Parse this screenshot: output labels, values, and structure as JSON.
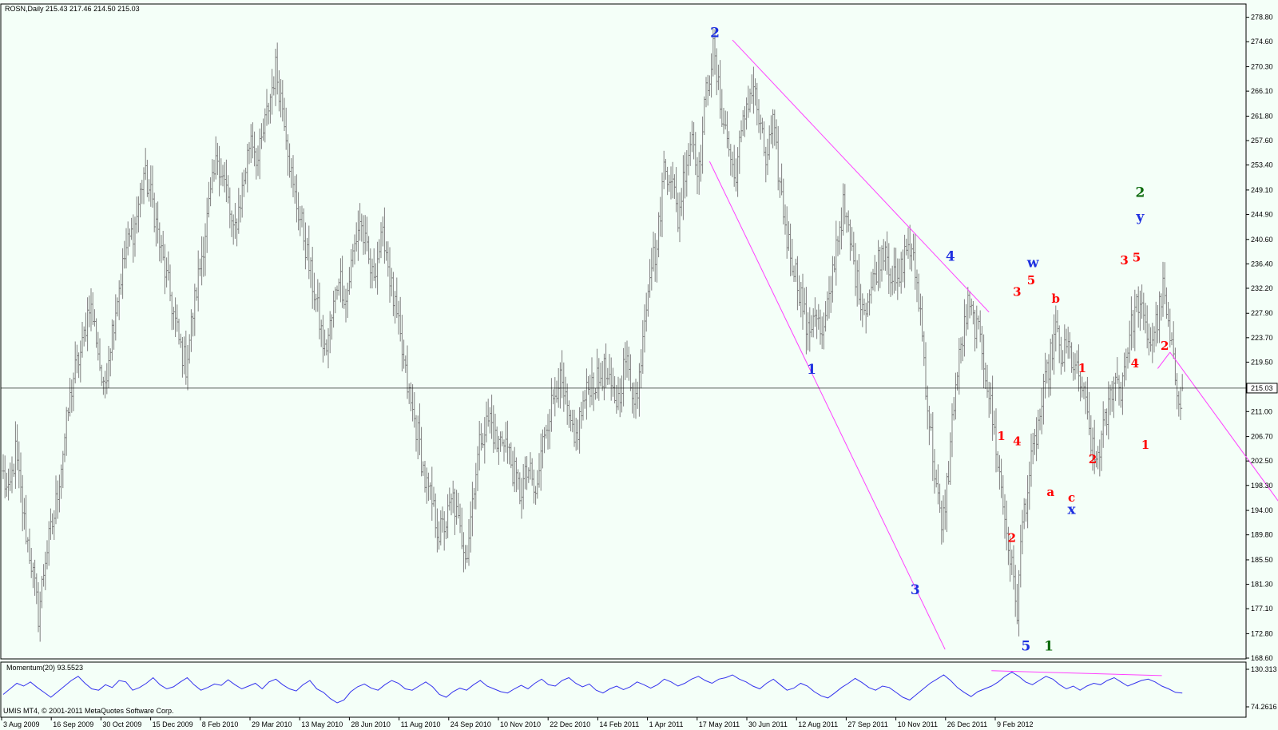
{
  "header": {
    "symbol_line": "ROSN,Daily  215.43 217.46 214.50 215.03",
    "indicator_line": "Momentum(20) 93.5523",
    "copyright": "UMIS MT4, © 2001-2011 MetaQuotes Software Corp."
  },
  "colors": {
    "background": "#f4fff8",
    "bars": "#808080",
    "trendline": "#ff40ff",
    "momentum": "#3333ee",
    "wave_red": "#ff0000",
    "wave_blue": "#1e30e0",
    "wave_green": "#0b6a0b",
    "grid": "#000000"
  },
  "chart_data": [
    {
      "type": "bar",
      "title": "ROSN,Daily",
      "ohlc_last": {
        "open": 215.43,
        "high": 217.46,
        "low": 214.5,
        "close": 215.03
      },
      "current_price": 215.03,
      "current_price_label": "215.03",
      "ylim": [
        168.6,
        280.95
      ],
      "y_ticks": [
        "278.80",
        "274.60",
        "270.30",
        "266.10",
        "261.80",
        "257.60",
        "253.40",
        "249.10",
        "244.90",
        "240.60",
        "236.40",
        "232.20",
        "227.90",
        "223.70",
        "219.50",
        "215.03",
        "211.00",
        "206.70",
        "202.50",
        "198.30",
        "194.00",
        "189.80",
        "185.50",
        "181.30",
        "177.10",
        "172.80",
        "168.60"
      ],
      "x_ticks": [
        "3 Aug 2009",
        "16 Sep 2009",
        "30 Oct 2009",
        "15 Dec 2009",
        "8 Feb 2010",
        "29 Mar 2010",
        "13 May 2010",
        "28 Jun 2010",
        "11 Aug 2010",
        "24 Sep 2010",
        "10 Nov 2010",
        "22 Dec 2010",
        "14 Feb 2011",
        "1 Apr 2011",
        "17 May 2011",
        "30 Jun 2011",
        "12 Aug 2011",
        "27 Sep 2011",
        "10 Nov 2011",
        "26 Dec 2011",
        "9 Feb 2012"
      ],
      "price_path": [
        [
          0,
          200
        ],
        [
          3,
          196
        ],
        [
          7,
          204
        ],
        [
          12,
          192
        ],
        [
          16,
          185
        ],
        [
          20,
          176
        ],
        [
          24,
          186
        ],
        [
          29,
          193
        ],
        [
          33,
          202
        ],
        [
          37,
          211
        ],
        [
          40,
          217
        ],
        [
          45,
          222
        ],
        [
          49,
          230
        ],
        [
          53,
          224
        ],
        [
          57,
          214
        ],
        [
          60,
          221
        ],
        [
          65,
          231
        ],
        [
          70,
          239
        ],
        [
          75,
          243
        ],
        [
          80,
          252
        ],
        [
          85,
          247
        ],
        [
          90,
          238
        ],
        [
          95,
          231
        ],
        [
          100,
          223
        ],
        [
          104,
          219
        ],
        [
          108,
          228
        ],
        [
          113,
          238
        ],
        [
          117,
          246
        ],
        [
          122,
          255
        ],
        [
          127,
          249
        ],
        [
          131,
          241
        ],
        [
          136,
          249
        ],
        [
          141,
          259
        ],
        [
          145,
          254
        ],
        [
          150,
          262
        ],
        [
          155,
          270
        ],
        [
          160,
          262
        ],
        [
          165,
          249
        ],
        [
          170,
          243
        ],
        [
          174,
          236
        ],
        [
          178,
          230
        ],
        [
          183,
          221
        ],
        [
          187,
          227
        ],
        [
          191,
          235
        ],
        [
          195,
          230
        ],
        [
          199,
          238
        ],
        [
          203,
          244
        ],
        [
          207,
          238
        ],
        [
          210,
          234
        ],
        [
          214,
          239
        ],
        [
          217,
          241
        ],
        [
          221,
          232
        ],
        [
          225,
          225
        ],
        [
          229,
          217
        ],
        [
          232,
          212
        ],
        [
          236,
          207
        ],
        [
          240,
          199
        ],
        [
          244,
          195
        ],
        [
          248,
          190
        ],
        [
          252,
          192
        ],
        [
          256,
          196
        ],
        [
          260,
          190
        ],
        [
          264,
          187
        ],
        [
          268,
          199
        ],
        [
          272,
          207
        ],
        [
          277,
          210
        ],
        [
          281,
          205
        ],
        [
          285,
          207
        ],
        [
          290,
          201
        ],
        [
          294,
          197
        ],
        [
          299,
          201
        ],
        [
          303,
          196
        ],
        [
          308,
          208
        ],
        [
          312,
          212
        ],
        [
          316,
          217
        ],
        [
          320,
          212
        ],
        [
          325,
          205
        ],
        [
          329,
          211
        ],
        [
          334,
          216
        ],
        [
          338,
          216
        ],
        [
          342,
          218
        ],
        [
          346,
          214
        ],
        [
          350,
          213
        ],
        [
          354,
          220
        ],
        [
          358,
          215
        ],
        [
          361,
          213
        ],
        [
          364,
          225
        ],
        [
          368,
          236
        ],
        [
          372,
          239
        ],
        [
          376,
          253
        ],
        [
          380,
          252
        ],
        [
          384,
          244
        ],
        [
          388,
          253
        ],
        [
          392,
          259
        ],
        [
          396,
          252
        ],
        [
          400,
          266
        ],
        [
          404,
          273
        ],
        [
          408,
          264
        ],
        [
          412,
          258
        ],
        [
          416,
          251
        ],
        [
          420,
          258
        ],
        [
          423,
          264
        ],
        [
          427,
          267
        ],
        [
          431,
          259
        ],
        [
          434,
          254
        ],
        [
          438,
          260
        ],
        [
          442,
          250
        ],
        [
          446,
          241
        ],
        [
          450,
          236
        ],
        [
          454,
          231
        ],
        [
          458,
          224
        ],
        [
          462,
          229
        ],
        [
          466,
          223
        ],
        [
          470,
          230
        ],
        [
          474,
          240
        ],
        [
          478,
          246
        ],
        [
          482,
          240
        ],
        [
          486,
          233
        ],
        [
          490,
          229
        ],
        [
          494,
          232
        ],
        [
          498,
          237
        ],
        [
          502,
          240
        ],
        [
          505,
          235
        ],
        [
          509,
          232
        ],
        [
          512,
          237
        ],
        [
          515,
          240
        ],
        [
          519,
          235
        ],
        [
          522,
          228
        ],
        [
          526,
          212
        ],
        [
          530,
          201
        ],
        [
          534,
          190
        ],
        [
          538,
          201
        ],
        [
          541,
          213
        ],
        [
          545,
          222
        ],
        [
          549,
          229
        ],
        [
          553,
          226
        ],
        [
          557,
          222
        ],
        [
          561,
          214
        ],
        [
          565,
          205
        ],
        [
          569,
          195
        ],
        [
          573,
          186
        ],
        [
          577,
          177
        ],
        [
          580,
          192
        ],
        [
          584,
          200
        ],
        [
          588,
          207
        ],
        [
          591,
          212
        ],
        [
          595,
          219
        ],
        [
          599,
          225
        ],
        [
          602,
          220
        ],
        [
          606,
          222
        ],
        [
          610,
          218
        ],
        [
          614,
          215
        ],
        [
          618,
          208
        ],
        [
          621,
          202
        ],
        [
          624,
          205
        ],
        [
          628,
          210
        ],
        [
          632,
          217
        ],
        [
          636,
          215
        ],
        [
          639,
          221
        ],
        [
          643,
          227
        ],
        [
          646,
          230
        ],
        [
          650,
          225
        ],
        [
          653,
          223
        ],
        [
          657,
          227
        ],
        [
          660,
          232
        ],
        [
          664,
          223
        ],
        [
          668,
          215
        ],
        [
          671,
          213
        ]
      ]
    },
    {
      "type": "line",
      "title": "Momentum(20) 93.5523",
      "last_value": 93.5523,
      "ylim": [
        74.2616,
        130.313
      ],
      "y_ticks": [
        "130.313",
        "74.2616"
      ],
      "values": [
        92,
        100,
        108,
        104,
        110,
        102,
        95,
        88,
        96,
        104,
        112,
        118,
        108,
        100,
        98,
        106,
        102,
        112,
        110,
        98,
        102,
        108,
        116,
        106,
        100,
        103,
        110,
        116,
        106,
        98,
        102,
        107,
        105,
        113,
        106,
        100,
        104,
        108,
        100,
        110,
        114,
        106,
        100,
        97,
        106,
        112,
        100,
        95,
        86,
        80,
        84,
        96,
        103,
        107,
        101,
        98,
        106,
        112,
        108,
        100,
        98,
        104,
        110,
        103,
        92,
        88,
        96,
        101,
        98,
        106,
        112,
        104,
        100,
        96,
        94,
        100,
        105,
        100,
        108,
        114,
        106,
        104,
        112,
        116,
        108,
        103,
        107,
        98,
        94,
        100,
        104,
        99,
        103,
        110,
        106,
        101,
        106,
        114,
        110,
        104,
        108,
        114,
        118,
        112,
        108,
        114,
        116,
        120,
        114,
        110,
        104,
        100,
        108,
        114,
        106,
        98,
        101,
        108,
        104,
        96,
        90,
        87,
        94,
        102,
        108,
        115,
        109,
        102,
        98,
        104,
        102,
        95,
        88,
        84,
        92,
        100,
        108,
        114,
        120,
        112,
        102,
        95,
        89,
        96,
        100,
        104,
        110,
        118,
        124,
        118,
        110,
        106,
        112,
        118,
        114,
        106,
        100,
        104,
        98,
        104,
        108,
        106,
        112,
        116,
        110,
        104,
        108,
        112,
        114,
        110,
        104,
        100,
        95,
        94
      ]
    }
  ],
  "wave_labels": [
    {
      "text": "2",
      "color": "blue",
      "price": 275.4,
      "date_offset": 405
    },
    {
      "text": "1",
      "color": "blue",
      "price": 217.5,
      "date_offset": 460
    },
    {
      "text": "3",
      "color": "blue",
      "price": 179.6,
      "date_offset": 519
    },
    {
      "text": "4",
      "color": "blue",
      "price": 236.9,
      "date_offset": 539
    },
    {
      "text": "5",
      "color": "blue",
      "price": 169.9,
      "date_offset": 582
    },
    {
      "text": "1",
      "color": "green",
      "price": 169.9,
      "date_offset": 595
    },
    {
      "text": "1",
      "color": "red",
      "price": 206.1,
      "date_offset": 568
    },
    {
      "text": "4",
      "color": "red",
      "price": 205.2,
      "date_offset": 577
    },
    {
      "text": "2",
      "color": "red",
      "price": 188.6,
      "date_offset": 574
    },
    {
      "text": "3",
      "color": "red",
      "price": 230.9,
      "date_offset": 577
    },
    {
      "text": "5",
      "color": "red",
      "price": 232.9,
      "date_offset": 585
    },
    {
      "text": "w",
      "color": "blue",
      "price": 235.8,
      "date_offset": 586
    },
    {
      "text": "b",
      "color": "red",
      "price": 229.7,
      "date_offset": 599
    },
    {
      "text": "a",
      "color": "red",
      "price": 196.5,
      "date_offset": 596
    },
    {
      "text": "c",
      "color": "red",
      "price": 195.5,
      "date_offset": 608
    },
    {
      "text": "x",
      "color": "blue",
      "price": 193.4,
      "date_offset": 608
    },
    {
      "text": "1",
      "color": "red",
      "price": 217.8,
      "date_offset": 614
    },
    {
      "text": "2",
      "color": "red",
      "price": 202.1,
      "date_offset": 620
    },
    {
      "text": "3",
      "color": "red",
      "price": 236.3,
      "date_offset": 638
    },
    {
      "text": "5",
      "color": "red",
      "price": 236.8,
      "date_offset": 645
    },
    {
      "text": "4",
      "color": "red",
      "price": 218.6,
      "date_offset": 644
    },
    {
      "text": "2",
      "color": "green",
      "price": 247.9,
      "date_offset": 647
    },
    {
      "text": "y",
      "color": "blue",
      "price": 243.7,
      "date_offset": 647
    },
    {
      "text": "1",
      "color": "red",
      "price": 204.6,
      "date_offset": 650
    },
    {
      "text": "2",
      "color": "red",
      "price": 221.6,
      "date_offset": 661
    }
  ],
  "trendlines": [
    {
      "from": {
        "date_offset": 415,
        "price": 274.9
      },
      "to": {
        "date_offset": 561,
        "price": 228.1
      }
    },
    {
      "from": {
        "date_offset": 402,
        "price": 254.0
      },
      "to": {
        "date_offset": 536,
        "price": 170.1
      }
    },
    {
      "from": {
        "date_offset": 657,
        "price": 218.4
      },
      "to": {
        "date_offset": 664,
        "price": 221.2
      }
    },
    {
      "from": {
        "date_offset": 664,
        "price": 221.2
      },
      "to": {
        "date_offset": 762,
        "price": 180.5
      }
    }
  ],
  "momentum_trendline": {
    "from": {
      "index": 145,
      "value": 126
    },
    "to": {
      "index": 170,
      "value": 119
    }
  }
}
